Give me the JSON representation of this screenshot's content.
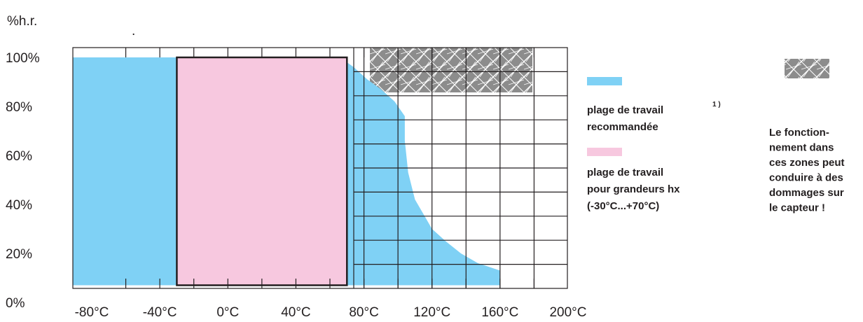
{
  "chart_data": {
    "type": "area",
    "title": "",
    "ylabel": "%h.r.",
    "ylabel_dot": ".",
    "xlabel": "",
    "x_ticks": [
      "-80°C",
      "-40°C",
      "0°C",
      "40°C",
      "80°C",
      "120°C",
      "160°C",
      "200°C"
    ],
    "y_ticks": [
      "0%",
      "20%",
      "40%",
      "60%",
      "80%",
      "100%"
    ],
    "xlim": [
      -80,
      200
    ],
    "ylim": [
      0,
      100
    ],
    "grid": true,
    "series": [
      {
        "name": "plage de travail recommandée",
        "color": "#7fd1f5",
        "x": [
          -80,
          66,
          74,
          82,
          90,
          98,
          104,
          104,
          106,
          110,
          115,
          120,
          128,
          137,
          147,
          160,
          160,
          -80
        ],
        "y": [
          100,
          100,
          96,
          91,
          87,
          82,
          76,
          66,
          53,
          42,
          36,
          30,
          25,
          20,
          16,
          13,
          7,
          7
        ]
      },
      {
        "name": "plage de travail pour grandeurs hx (-30°C...+70°C)",
        "color": "#f7c8df",
        "x": [
          -30,
          70,
          70,
          -30
        ],
        "y": [
          100,
          100,
          7,
          7
        ]
      }
    ],
    "danger_zone": {
      "x": [
        88,
        160
      ],
      "y": [
        82,
        102
      ]
    }
  },
  "legend": {
    "recommended_label_1": "plage de travail",
    "recommended_label_2": "recommandée",
    "footnote": "1 )",
    "hx_label_1": "plage de travail",
    "hx_label_2": "pour grandeurs hx",
    "hx_label_3": "(-30°C...+70°C)",
    "warning_lines": [
      "Le fonction-",
      "nement dans",
      "ces zones peut",
      "conduire à des",
      "dommages sur",
      "le capteur !"
    ]
  },
  "colors": {
    "recommended": "#7fd1f5",
    "hx": "#f7c8df",
    "hatch": "#8c8c8c",
    "grid": "#231f20"
  }
}
